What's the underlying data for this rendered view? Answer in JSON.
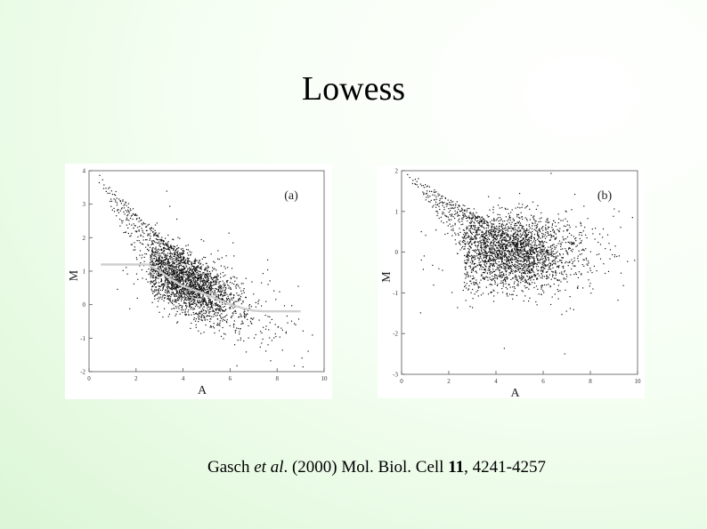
{
  "slide": {
    "title": "Lowess",
    "citation": {
      "author": "Gasch",
      "etal": "et al",
      "year_journal": ". (2000) Mol. Biol. Cell ",
      "volume": "11",
      "pages": ", 4241-4257"
    }
  },
  "chart_data": [
    {
      "type": "scatter",
      "panel_label": "(a)",
      "xlabel": "A",
      "ylabel": "M",
      "xlim": [
        0,
        10
      ],
      "ylim": [
        -2,
        4
      ],
      "xticks": [
        "0",
        "2",
        "4",
        "6",
        "8",
        "10"
      ],
      "yticks": [
        "-2",
        "-1",
        "0",
        "1",
        "2",
        "3",
        "4"
      ],
      "grid": false,
      "lowess_curve": {
        "x": [
          0.5,
          1.5,
          2.5,
          3.0,
          3.5,
          4.0,
          4.5,
          5.0,
          5.5,
          6.0,
          6.5,
          7.0,
          7.5,
          8.0,
          9.0
        ],
        "y": [
          1.2,
          1.2,
          1.2,
          1.0,
          0.75,
          0.55,
          0.42,
          0.3,
          0.15,
          0.0,
          -0.1,
          -0.18,
          -0.2,
          -0.2,
          -0.2
        ]
      },
      "cloud": {
        "center_x": 4.3,
        "center_y": 0.6,
        "x_spread": 1.3,
        "y_spread": 0.45,
        "trend": -0.33
      }
    },
    {
      "type": "scatter",
      "panel_label": "(b)",
      "xlabel": "A",
      "ylabel": "M",
      "xlim": [
        0,
        10
      ],
      "ylim": [
        -3,
        2
      ],
      "xticks": [
        "0",
        "2",
        "4",
        "6",
        "8",
        "10"
      ],
      "yticks": [
        "-3",
        "-2",
        "-1",
        "0",
        "1",
        "2"
      ],
      "grid": false,
      "cloud": {
        "center_x": 4.8,
        "center_y": 0.0,
        "x_spread": 1.4,
        "y_spread": 0.45,
        "trend": 0.0
      }
    }
  ]
}
